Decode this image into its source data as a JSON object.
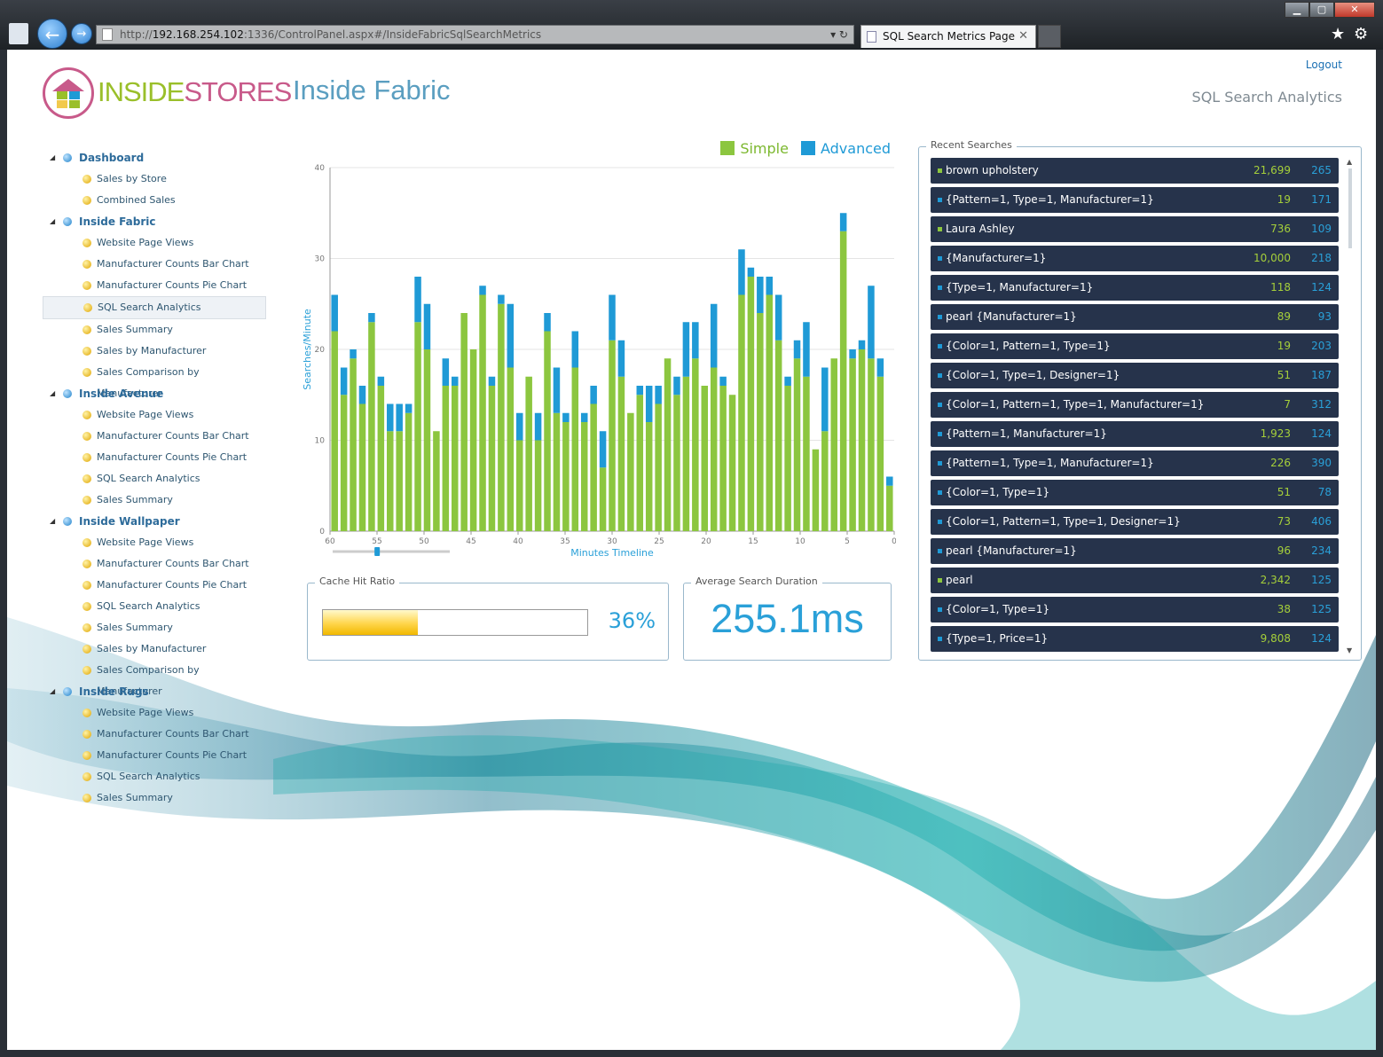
{
  "browser": {
    "url_prefix": "http://",
    "url_host": "192.168.254.102",
    "url_rest": ":1336/ControlPanel.aspx#/InsideFabricSqlSearchMetrics",
    "tab_title": "SQL Search Metrics Page",
    "tab_close": "✕",
    "back_icon": "←",
    "forward_icon": "→",
    "addr_tools": "▾ ↻",
    "min_icon": "▁",
    "max_icon": "▢",
    "close_icon": "✕",
    "star_icon": "★",
    "gear_icon": "⚙"
  },
  "header": {
    "logo_part1": "INSIDE",
    "logo_part2": "STORES",
    "title": "Inside Fabric",
    "logout": "Logout",
    "subtitle": "SQL Search Analytics"
  },
  "sidebar": {
    "groups": [
      {
        "label": "Dashboard",
        "items": [
          "Sales by Store",
          "Combined Sales"
        ]
      },
      {
        "label": "Inside Fabric",
        "items": [
          "Website Page Views",
          "Manufacturer Counts Bar Chart",
          "Manufacturer Counts Pie Chart",
          "SQL Search Analytics",
          "Sales Summary",
          "Sales by Manufacturer",
          "Sales Comparison by Manufacturer"
        ]
      },
      {
        "label": "Inside Avenue",
        "items": [
          "Website Page Views",
          "Manufacturer Counts Bar Chart",
          "Manufacturer Counts Pie Chart",
          "SQL Search Analytics",
          "Sales Summary"
        ]
      },
      {
        "label": "Inside Wallpaper",
        "items": [
          "Website Page Views",
          "Manufacturer Counts Bar Chart",
          "Manufacturer Counts Pie Chart",
          "SQL Search Analytics",
          "Sales Summary",
          "Sales by Manufacturer",
          "Sales Comparison by Manufacturer"
        ]
      },
      {
        "label": "Inside Rugs",
        "items": [
          "Website Page Views",
          "Manufacturer Counts Bar Chart",
          "Manufacturer Counts Pie Chart",
          "SQL Search Analytics",
          "Sales Summary"
        ]
      }
    ],
    "selected": "Inside Fabric / SQL Search Analytics",
    "expand_icon": "◢"
  },
  "chart_data": {
    "type": "bar",
    "stacked": true,
    "xlabel": "Minutes Timeline",
    "ylabel": "Searches/Minute",
    "ylim": [
      0,
      40
    ],
    "yticks": [
      0,
      10,
      20,
      30,
      40
    ],
    "xlim": [
      60,
      0
    ],
    "xticks": [
      60,
      55,
      50,
      45,
      40,
      35,
      30,
      25,
      20,
      15,
      10,
      5,
      0
    ],
    "legend_position": "top-right",
    "grid": true,
    "colors": {
      "Simple": "#8cc63f",
      "Advanced": "#1f9ad6"
    },
    "series": [
      {
        "name": "Simple",
        "values": [
          22,
          15,
          19,
          14,
          23,
          16,
          11,
          11,
          13,
          23,
          20,
          11,
          16,
          16,
          24,
          20,
          26,
          16,
          25,
          18,
          10,
          17,
          10,
          22,
          13,
          12,
          18,
          12,
          14,
          7,
          21,
          17,
          13,
          15,
          12,
          14,
          19,
          15,
          17,
          19,
          16,
          18,
          16,
          15,
          26,
          28,
          24,
          26,
          21,
          16,
          19,
          17,
          9,
          11,
          19,
          33,
          19,
          20,
          19,
          17,
          5
        ]
      },
      {
        "name": "Advanced",
        "values": [
          4,
          3,
          1,
          2,
          1,
          1,
          3,
          3,
          1,
          5,
          5,
          0,
          3,
          1,
          0,
          0,
          1,
          1,
          1,
          7,
          3,
          0,
          3,
          2,
          5,
          1,
          4,
          1,
          2,
          4,
          5,
          4,
          0,
          1,
          4,
          2,
          0,
          2,
          6,
          4,
          0,
          7,
          1,
          0,
          5,
          1,
          4,
          2,
          5,
          1,
          2,
          6,
          0,
          7,
          0,
          2,
          1,
          1,
          8,
          2,
          1
        ]
      }
    ]
  },
  "slider": {
    "value": 0.38
  },
  "cache": {
    "title": "Cache Hit Ratio",
    "value_text": "36%",
    "fraction": 0.36
  },
  "duration": {
    "title": "Average Search Duration",
    "value_text": "255.1ms"
  },
  "recent": {
    "title": "Recent Searches",
    "rows": [
      {
        "term": "brown upholstery",
        "count": "21,699",
        "ms": "265",
        "kind": "simple"
      },
      {
        "term": "{Pattern=1, Type=1, Manufacturer=1}",
        "count": "19",
        "ms": "171",
        "kind": "advanced"
      },
      {
        "term": "Laura Ashley",
        "count": "736",
        "ms": "109",
        "kind": "simple"
      },
      {
        "term": "{Manufacturer=1}",
        "count": "10,000",
        "ms": "218",
        "kind": "advanced"
      },
      {
        "term": "{Type=1, Manufacturer=1}",
        "count": "118",
        "ms": "124",
        "kind": "advanced"
      },
      {
        "term": "pearl  {Manufacturer=1}",
        "count": "89",
        "ms": "93",
        "kind": "advanced"
      },
      {
        "term": "{Color=1, Pattern=1, Type=1}",
        "count": "19",
        "ms": "203",
        "kind": "advanced"
      },
      {
        "term": "{Color=1, Type=1, Designer=1}",
        "count": "51",
        "ms": "187",
        "kind": "advanced"
      },
      {
        "term": "{Color=1, Pattern=1, Type=1, Manufacturer=1}",
        "count": "7",
        "ms": "312",
        "kind": "advanced"
      },
      {
        "term": "{Pattern=1, Manufacturer=1}",
        "count": "1,923",
        "ms": "124",
        "kind": "advanced"
      },
      {
        "term": "{Pattern=1, Type=1, Manufacturer=1}",
        "count": "226",
        "ms": "390",
        "kind": "advanced"
      },
      {
        "term": "{Color=1, Type=1}",
        "count": "51",
        "ms": "78",
        "kind": "advanced"
      },
      {
        "term": "{Color=1, Pattern=1, Type=1, Designer=1}",
        "count": "73",
        "ms": "406",
        "kind": "advanced"
      },
      {
        "term": "pearl  {Manufacturer=1}",
        "count": "96",
        "ms": "234",
        "kind": "advanced"
      },
      {
        "term": "pearl",
        "count": "2,342",
        "ms": "125",
        "kind": "simple"
      },
      {
        "term": "{Color=1, Type=1}",
        "count": "38",
        "ms": "125",
        "kind": "advanced"
      },
      {
        "term": "{Type=1, Price=1}",
        "count": "9,808",
        "ms": "124",
        "kind": "advanced"
      }
    ],
    "scroll_up_icon": "▲",
    "scroll_down_icon": "▼"
  }
}
